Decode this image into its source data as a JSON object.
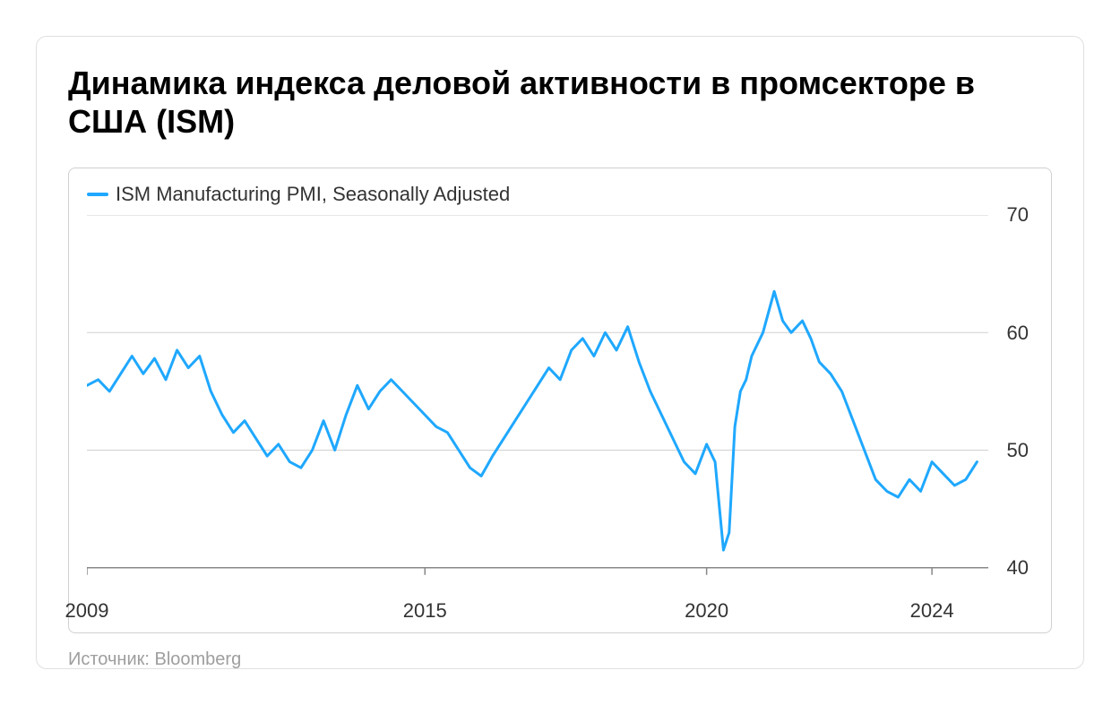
{
  "title": "Динамика индекса деловой активности в промсекторе в США (ISM)",
  "source": "Источник: Bloomberg",
  "chart": {
    "type": "line",
    "legend_label": "ISM Manufacturing PMI, Seasonally Adjusted",
    "line_color": "#1fa8ff",
    "line_width": 3,
    "background_color": "#ffffff",
    "grid_color": "#d0d0d0",
    "axis_color": "#888888",
    "text_color": "#333333",
    "ylim": [
      38,
      70
    ],
    "yticks": [
      40,
      50,
      60,
      70
    ],
    "xlim": [
      2009,
      2025
    ],
    "xticks": [
      2009,
      2015,
      2020,
      2024
    ],
    "title_fontsize": 36,
    "label_fontsize": 22,
    "data": [
      {
        "x": 2009.0,
        "y": 55.5
      },
      {
        "x": 2009.2,
        "y": 56.0
      },
      {
        "x": 2009.4,
        "y": 55.0
      },
      {
        "x": 2009.6,
        "y": 56.5
      },
      {
        "x": 2009.8,
        "y": 58.0
      },
      {
        "x": 2010.0,
        "y": 56.5
      },
      {
        "x": 2010.2,
        "y": 57.8
      },
      {
        "x": 2010.4,
        "y": 56.0
      },
      {
        "x": 2010.6,
        "y": 58.5
      },
      {
        "x": 2010.8,
        "y": 57.0
      },
      {
        "x": 2011.0,
        "y": 58.0
      },
      {
        "x": 2011.2,
        "y": 55.0
      },
      {
        "x": 2011.4,
        "y": 53.0
      },
      {
        "x": 2011.6,
        "y": 51.5
      },
      {
        "x": 2011.8,
        "y": 52.5
      },
      {
        "x": 2012.0,
        "y": 51.0
      },
      {
        "x": 2012.2,
        "y": 49.5
      },
      {
        "x": 2012.4,
        "y": 50.5
      },
      {
        "x": 2012.6,
        "y": 49.0
      },
      {
        "x": 2012.8,
        "y": 48.5
      },
      {
        "x": 2013.0,
        "y": 50.0
      },
      {
        "x": 2013.2,
        "y": 52.5
      },
      {
        "x": 2013.4,
        "y": 50.0
      },
      {
        "x": 2013.6,
        "y": 53.0
      },
      {
        "x": 2013.8,
        "y": 55.5
      },
      {
        "x": 2014.0,
        "y": 53.5
      },
      {
        "x": 2014.2,
        "y": 55.0
      },
      {
        "x": 2014.4,
        "y": 56.0
      },
      {
        "x": 2014.6,
        "y": 55.0
      },
      {
        "x": 2014.8,
        "y": 54.0
      },
      {
        "x": 2015.0,
        "y": 53.0
      },
      {
        "x": 2015.2,
        "y": 52.0
      },
      {
        "x": 2015.4,
        "y": 51.5
      },
      {
        "x": 2015.6,
        "y": 50.0
      },
      {
        "x": 2015.8,
        "y": 48.5
      },
      {
        "x": 2016.0,
        "y": 47.8
      },
      {
        "x": 2016.2,
        "y": 49.5
      },
      {
        "x": 2016.4,
        "y": 51.0
      },
      {
        "x": 2016.6,
        "y": 52.5
      },
      {
        "x": 2016.8,
        "y": 54.0
      },
      {
        "x": 2017.0,
        "y": 55.5
      },
      {
        "x": 2017.2,
        "y": 57.0
      },
      {
        "x": 2017.4,
        "y": 56.0
      },
      {
        "x": 2017.6,
        "y": 58.5
      },
      {
        "x": 2017.8,
        "y": 59.5
      },
      {
        "x": 2018.0,
        "y": 58.0
      },
      {
        "x": 2018.2,
        "y": 60.0
      },
      {
        "x": 2018.4,
        "y": 58.5
      },
      {
        "x": 2018.6,
        "y": 60.5
      },
      {
        "x": 2018.8,
        "y": 57.5
      },
      {
        "x": 2019.0,
        "y": 55.0
      },
      {
        "x": 2019.2,
        "y": 53.0
      },
      {
        "x": 2019.4,
        "y": 51.0
      },
      {
        "x": 2019.6,
        "y": 49.0
      },
      {
        "x": 2019.8,
        "y": 48.0
      },
      {
        "x": 2020.0,
        "y": 50.5
      },
      {
        "x": 2020.15,
        "y": 49.0
      },
      {
        "x": 2020.3,
        "y": 41.5
      },
      {
        "x": 2020.4,
        "y": 43.0
      },
      {
        "x": 2020.5,
        "y": 52.0
      },
      {
        "x": 2020.6,
        "y": 55.0
      },
      {
        "x": 2020.7,
        "y": 56.0
      },
      {
        "x": 2020.8,
        "y": 58.0
      },
      {
        "x": 2021.0,
        "y": 60.0
      },
      {
        "x": 2021.2,
        "y": 63.5
      },
      {
        "x": 2021.35,
        "y": 61.0
      },
      {
        "x": 2021.5,
        "y": 60.0
      },
      {
        "x": 2021.7,
        "y": 61.0
      },
      {
        "x": 2021.85,
        "y": 59.5
      },
      {
        "x": 2022.0,
        "y": 57.5
      },
      {
        "x": 2022.2,
        "y": 56.5
      },
      {
        "x": 2022.4,
        "y": 55.0
      },
      {
        "x": 2022.6,
        "y": 52.5
      },
      {
        "x": 2022.8,
        "y": 50.0
      },
      {
        "x": 2023.0,
        "y": 47.5
      },
      {
        "x": 2023.2,
        "y": 46.5
      },
      {
        "x": 2023.4,
        "y": 46.0
      },
      {
        "x": 2023.6,
        "y": 47.5
      },
      {
        "x": 2023.8,
        "y": 46.5
      },
      {
        "x": 2024.0,
        "y": 49.0
      },
      {
        "x": 2024.2,
        "y": 48.0
      },
      {
        "x": 2024.4,
        "y": 47.0
      },
      {
        "x": 2024.6,
        "y": 47.5
      },
      {
        "x": 2024.8,
        "y": 49.0
      }
    ]
  }
}
